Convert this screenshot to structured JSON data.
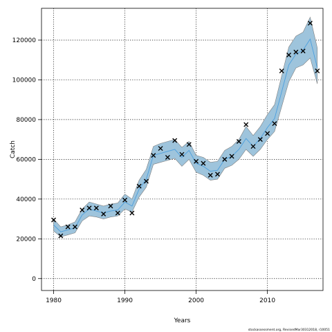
{
  "chart_data": {
    "type": "line",
    "xlabel": "Years",
    "ylabel": "Catch",
    "footer": "stockassessment.org, RevisedMar30312018, r10051",
    "xlim": [
      1978.3,
      2017.8
    ],
    "ylim": [
      -6000,
      136000
    ],
    "xticks": [
      1980,
      1990,
      2000,
      2010
    ],
    "xtick_labels": [
      "1980",
      "1990",
      "2000",
      "2010"
    ],
    "yticks": [
      0,
      20000,
      40000,
      60000,
      80000,
      100000,
      120000
    ],
    "ytick_labels": [
      "0",
      "20000",
      "40000",
      "60000",
      "80000",
      "100000",
      "120000"
    ],
    "grid": true,
    "colors": {
      "band_fill": "#9ec4dc",
      "band_edge": "#7f7f7f",
      "fit_line": "#4a9ede",
      "observed_marker": "#000000"
    },
    "x": [
      1980,
      1981,
      1982,
      1983,
      1984,
      1985,
      1986,
      1987,
      1988,
      1989,
      1990,
      1991,
      1992,
      1993,
      1994,
      1995,
      1996,
      1997,
      1998,
      1999,
      2000,
      2001,
      2002,
      2003,
      2004,
      2005,
      2006,
      2007,
      2008,
      2009,
      2010,
      2011,
      2012,
      2013,
      2014,
      2015,
      2016,
      2017
    ],
    "series": [
      {
        "values": [
          27000,
          23500,
          24500,
          25500,
          32000,
          35000,
          34000,
          33000,
          34000,
          34500,
          38500,
          36500,
          45000,
          50000,
          62000,
          63000,
          64000,
          65000,
          61000,
          64500,
          58000,
          56500,
          54000,
          54500,
          60000,
          61500,
          65000,
          70500,
          66500,
          70500,
          76000,
          80500,
          94000,
          107500,
          113000,
          115000,
          120500,
          106000
        ],
        "lower": [
          24000,
          21000,
          22000,
          23000,
          29000,
          31500,
          31000,
          30000,
          31000,
          31500,
          35000,
          33500,
          41000,
          46000,
          57500,
          58500,
          59500,
          60500,
          56500,
          60000,
          53500,
          52000,
          49500,
          50000,
          55500,
          57000,
          60000,
          65000,
          61500,
          65000,
          70000,
          74000,
          86500,
          99000,
          106000,
          107500,
          111000,
          98000
        ],
        "upper": [
          30000,
          26000,
          27000,
          28500,
          35000,
          38500,
          37500,
          36500,
          37500,
          38000,
          42500,
          40000,
          49500,
          55000,
          66500,
          68000,
          69000,
          70000,
          66000,
          69000,
          62000,
          61000,
          58500,
          59000,
          64500,
          66500,
          70000,
          76500,
          72000,
          76500,
          82500,
          87500,
          102000,
          116500,
          122000,
          124000,
          131500,
          116000
        ]
      }
    ],
    "observed": [
      29500,
      21500,
      26000,
      26000,
      34500,
      35500,
      35500,
      32500,
      36500,
      33000,
      39500,
      33000,
      46500,
      49000,
      62000,
      65500,
      61000,
      69500,
      62500,
      67500,
      59000,
      58000,
      52000,
      52500,
      60000,
      61500,
      69000,
      77500,
      66500,
      70000,
      73000,
      78000,
      104500,
      112500,
      114000,
      114500,
      128500,
      104500
    ]
  }
}
